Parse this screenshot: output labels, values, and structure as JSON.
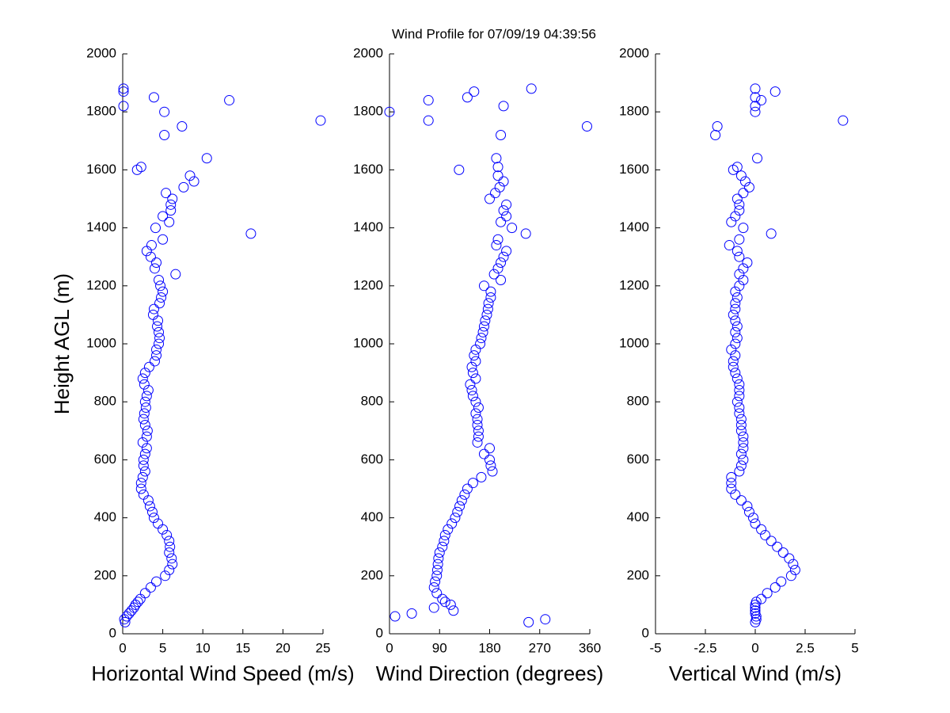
{
  "chart_data": [
    {
      "type": "scatter",
      "title": "Wind Profile for  07/09/19 04:39:56",
      "xlabel": "Horizontal Wind Speed (m/s)",
      "ylabel": "Height AGL (m)",
      "color": "#0000ff",
      "marker": "o",
      "xlim": [
        0,
        25
      ],
      "xticks": [
        0,
        5,
        10,
        15,
        20,
        25
      ],
      "ylim": [
        0,
        2000
      ],
      "yticks": [
        0,
        200,
        400,
        600,
        800,
        1000,
        1200,
        1400,
        1600,
        1800,
        2000
      ],
      "x": [
        0.3,
        0.2,
        0.5,
        0.8,
        1.1,
        1.4,
        1.6,
        1.9,
        2.2,
        2.8,
        3.5,
        4.2,
        5.3,
        5.8,
        6.2,
        6.1,
        5.8,
        5.9,
        5.8,
        5.5,
        5.0,
        4.4,
        3.9,
        3.7,
        3.4,
        3.2,
        2.6,
        2.3,
        2.3,
        2.5,
        2.8,
        2.6,
        2.6,
        2.8,
        3.0,
        2.5,
        3.0,
        3.1,
        2.8,
        2.6,
        2.7,
        2.9,
        2.8,
        3.0,
        3.2,
        2.7,
        2.5,
        2.8,
        3.3,
        4.0,
        4.2,
        4.2,
        4.5,
        4.6,
        4.5,
        4.3,
        4.4,
        3.8,
        3.9,
        4.6,
        4.8,
        5.0,
        4.7,
        4.5,
        6.6,
        4.0,
        4.2,
        3.5,
        3.0,
        3.6,
        5.0,
        16.0,
        4.1,
        5.8,
        5.0,
        6.0,
        6.0,
        6.2,
        5.4,
        7.6,
        8.9,
        8.4,
        1.8,
        2.3,
        10.5,
        5.2,
        7.4,
        24.7,
        5.2,
        0.1,
        13.3,
        3.9,
        0.1,
        0.1
      ],
      "y": [
        40,
        50,
        60,
        70,
        80,
        90,
        100,
        110,
        120,
        140,
        160,
        180,
        200,
        220,
        240,
        260,
        280,
        300,
        320,
        340,
        360,
        380,
        400,
        420,
        440,
        460,
        480,
        500,
        520,
        540,
        560,
        580,
        600,
        620,
        640,
        660,
        680,
        700,
        720,
        740,
        760,
        780,
        800,
        820,
        840,
        860,
        880,
        900,
        920,
        940,
        960,
        980,
        1000,
        1020,
        1040,
        1060,
        1080,
        1100,
        1120,
        1140,
        1160,
        1180,
        1200,
        1220,
        1240,
        1260,
        1280,
        1300,
        1320,
        1340,
        1360,
        1380,
        1400,
        1420,
        1440,
        1460,
        1480,
        1500,
        1520,
        1540,
        1560,
        1580,
        1600,
        1610,
        1640,
        1720,
        1750,
        1770,
        1800,
        1820,
        1840,
        1850,
        1870,
        1880
      ]
    },
    {
      "type": "scatter",
      "xlabel": "Wind Direction (degrees)",
      "color": "#0000ff",
      "marker": "o",
      "xlim": [
        0,
        360
      ],
      "xticks": [
        0,
        90,
        180,
        270,
        360
      ],
      "ylim": [
        0,
        2000
      ],
      "yticks": [
        0,
        200,
        400,
        600,
        800,
        1000,
        1200,
        1400,
        1600,
        1800,
        2000
      ],
      "x": [
        250,
        280,
        10,
        40,
        115,
        80,
        110,
        100,
        95,
        85,
        80,
        82,
        85,
        86,
        87,
        88,
        90,
        95,
        98,
        100,
        105,
        112,
        118,
        122,
        126,
        130,
        135,
        140,
        150,
        165,
        185,
        182,
        180,
        170,
        180,
        158,
        160,
        160,
        158,
        158,
        155,
        160,
        155,
        150,
        148,
        145,
        155,
        150,
        148,
        155,
        152,
        155,
        163,
        165,
        168,
        170,
        172,
        175,
        177,
        178,
        182,
        182,
        170,
        200,
        188,
        195,
        200,
        205,
        210,
        192,
        195,
        245,
        220,
        200,
        210,
        205,
        210,
        180,
        190,
        198,
        205,
        195,
        125,
        195,
        192,
        200,
        355,
        70,
        0,
        205,
        70,
        140,
        152,
        255
      ],
      "y": [
        40,
        50,
        60,
        70,
        80,
        90,
        100,
        110,
        120,
        140,
        160,
        180,
        200,
        220,
        240,
        260,
        280,
        300,
        320,
        340,
        360,
        380,
        400,
        420,
        440,
        460,
        480,
        500,
        520,
        540,
        560,
        580,
        600,
        620,
        640,
        660,
        680,
        700,
        720,
        740,
        760,
        780,
        800,
        820,
        840,
        860,
        880,
        900,
        920,
        940,
        960,
        980,
        1000,
        1020,
        1040,
        1060,
        1080,
        1100,
        1120,
        1140,
        1160,
        1180,
        1200,
        1220,
        1240,
        1260,
        1280,
        1300,
        1320,
        1340,
        1360,
        1380,
        1400,
        1420,
        1440,
        1460,
        1480,
        1500,
        1520,
        1540,
        1560,
        1580,
        1600,
        1610,
        1640,
        1720,
        1750,
        1770,
        1800,
        1820,
        1840,
        1850,
        1870,
        1880
      ]
    },
    {
      "type": "scatter",
      "xlabel": "Vertical Wind (m/s)",
      "color": "#0000ff",
      "marker": "o",
      "xlim": [
        -5,
        5
      ],
      "xticks": [
        -5,
        -2.5,
        0,
        2.5,
        5
      ],
      "ylim": [
        0,
        2000
      ],
      "yticks": [
        0,
        200,
        400,
        600,
        800,
        1000,
        1200,
        1400,
        1600,
        1800,
        2000
      ],
      "x": [
        0,
        0.05,
        0.05,
        0,
        0,
        0,
        0,
        0.05,
        0.3,
        0.6,
        1.0,
        1.3,
        1.8,
        2.0,
        1.9,
        1.7,
        1.4,
        1.1,
        0.8,
        0.5,
        0.3,
        0.0,
        -0.1,
        -0.3,
        -0.4,
        -0.7,
        -1.0,
        -1.2,
        -1.2,
        -1.2,
        -0.8,
        -0.7,
        -0.6,
        -0.7,
        -0.6,
        -0.6,
        -0.6,
        -0.7,
        -0.7,
        -0.7,
        -0.8,
        -0.8,
        -0.9,
        -0.8,
        -0.8,
        -0.8,
        -0.9,
        -1.0,
        -1.1,
        -1.1,
        -1.0,
        -1.2,
        -1.0,
        -0.9,
        -1.0,
        -0.9,
        -1.0,
        -1.1,
        -1.0,
        -1.0,
        -0.9,
        -1.0,
        -0.8,
        -0.6,
        -0.8,
        -0.6,
        -0.4,
        -0.8,
        -0.9,
        -1.3,
        -0.8,
        0.8,
        -0.6,
        -1.2,
        -1.0,
        -0.8,
        -0.8,
        -0.9,
        -0.6,
        -0.3,
        -0.5,
        -0.7,
        -1.1,
        -0.9,
        0.1,
        -2.0,
        -1.9,
        4.4,
        0,
        0,
        0.3,
        0,
        1.0,
        0
      ],
      "y": [
        40,
        50,
        60,
        70,
        80,
        90,
        100,
        110,
        120,
        140,
        160,
        180,
        200,
        220,
        240,
        260,
        280,
        300,
        320,
        340,
        360,
        380,
        400,
        420,
        440,
        460,
        480,
        500,
        520,
        540,
        560,
        580,
        600,
        620,
        640,
        660,
        680,
        700,
        720,
        740,
        760,
        780,
        800,
        820,
        840,
        860,
        880,
        900,
        920,
        940,
        960,
        980,
        1000,
        1020,
        1040,
        1060,
        1080,
        1100,
        1120,
        1140,
        1160,
        1180,
        1200,
        1220,
        1240,
        1260,
        1280,
        1300,
        1320,
        1340,
        1360,
        1380,
        1400,
        1420,
        1440,
        1460,
        1480,
        1500,
        1520,
        1540,
        1560,
        1580,
        1600,
        1610,
        1640,
        1720,
        1750,
        1770,
        1800,
        1820,
        1840,
        1850,
        1870,
        1880
      ]
    }
  ]
}
